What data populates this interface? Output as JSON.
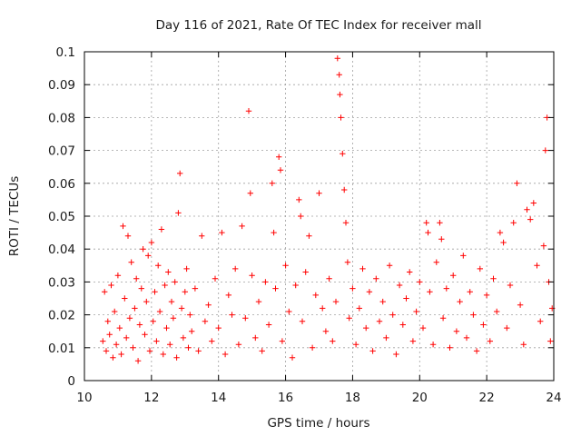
{
  "chart_data": {
    "type": "scatter",
    "title": "Day 116 of 2021, Rate Of TEC Index for receiver mall",
    "xlabel": "GPS time / hours",
    "ylabel": "ROTI / TECUs",
    "xlim": [
      10,
      24
    ],
    "ylim": [
      0,
      0.1
    ],
    "x_ticks": [
      "10",
      "12",
      "14",
      "16",
      "18",
      "20",
      "22",
      "24"
    ],
    "y_ticks": [
      "0",
      "0.01",
      "0.02",
      "0.03",
      "0.04",
      "0.05",
      "0.06",
      "0.07",
      "0.08",
      "0.09",
      "0.1"
    ],
    "grid": true,
    "marker": "plus",
    "color": "#ff0000",
    "series": [
      {
        "points": [
          [
            10.55,
            0.012
          ],
          [
            10.6,
            0.027
          ],
          [
            10.65,
            0.009
          ],
          [
            10.7,
            0.018
          ],
          [
            10.75,
            0.014
          ],
          [
            10.8,
            0.029
          ],
          [
            10.85,
            0.007
          ],
          [
            10.9,
            0.021
          ],
          [
            10.95,
            0.011
          ],
          [
            11.0,
            0.032
          ],
          [
            11.05,
            0.016
          ],
          [
            11.1,
            0.008
          ],
          [
            11.15,
            0.047
          ],
          [
            11.2,
            0.025
          ],
          [
            11.25,
            0.013
          ],
          [
            11.3,
            0.044
          ],
          [
            11.35,
            0.019
          ],
          [
            11.4,
            0.036
          ],
          [
            11.45,
            0.01
          ],
          [
            11.5,
            0.022
          ],
          [
            11.55,
            0.031
          ],
          [
            11.6,
            0.006
          ],
          [
            11.65,
            0.017
          ],
          [
            11.7,
            0.028
          ],
          [
            11.75,
            0.04
          ],
          [
            11.8,
            0.014
          ],
          [
            11.85,
            0.024
          ],
          [
            11.9,
            0.038
          ],
          [
            11.95,
            0.009
          ],
          [
            12.0,
            0.042
          ],
          [
            12.05,
            0.018
          ],
          [
            12.1,
            0.027
          ],
          [
            12.15,
            0.012
          ],
          [
            12.2,
            0.035
          ],
          [
            12.25,
            0.021
          ],
          [
            12.3,
            0.046
          ],
          [
            12.35,
            0.008
          ],
          [
            12.4,
            0.029
          ],
          [
            12.45,
            0.016
          ],
          [
            12.5,
            0.033
          ],
          [
            12.55,
            0.011
          ],
          [
            12.6,
            0.024
          ],
          [
            12.65,
            0.019
          ],
          [
            12.7,
            0.03
          ],
          [
            12.75,
            0.007
          ],
          [
            12.8,
            0.051
          ],
          [
            12.85,
            0.063
          ],
          [
            12.9,
            0.022
          ],
          [
            12.95,
            0.013
          ],
          [
            13.0,
            0.027
          ],
          [
            13.05,
            0.034
          ],
          [
            13.1,
            0.01
          ],
          [
            13.15,
            0.02
          ],
          [
            13.2,
            0.015
          ],
          [
            13.3,
            0.028
          ],
          [
            13.4,
            0.009
          ],
          [
            13.5,
            0.044
          ],
          [
            13.6,
            0.018
          ],
          [
            13.7,
            0.023
          ],
          [
            13.8,
            0.012
          ],
          [
            13.9,
            0.031
          ],
          [
            14.0,
            0.016
          ],
          [
            14.1,
            0.045
          ],
          [
            14.2,
            0.008
          ],
          [
            14.3,
            0.026
          ],
          [
            14.4,
            0.02
          ],
          [
            14.5,
            0.034
          ],
          [
            14.6,
            0.011
          ],
          [
            14.7,
            0.047
          ],
          [
            14.8,
            0.019
          ],
          [
            14.9,
            0.082
          ],
          [
            14.95,
            0.057
          ],
          [
            15.0,
            0.032
          ],
          [
            15.1,
            0.013
          ],
          [
            15.2,
            0.024
          ],
          [
            15.3,
            0.009
          ],
          [
            15.4,
            0.03
          ],
          [
            15.5,
            0.017
          ],
          [
            15.6,
            0.06
          ],
          [
            15.65,
            0.045
          ],
          [
            15.7,
            0.028
          ],
          [
            15.8,
            0.068
          ],
          [
            15.85,
            0.064
          ],
          [
            15.9,
            0.012
          ],
          [
            16.0,
            0.035
          ],
          [
            16.1,
            0.021
          ],
          [
            16.2,
            0.007
          ],
          [
            16.3,
            0.029
          ],
          [
            16.4,
            0.055
          ],
          [
            16.45,
            0.05
          ],
          [
            16.5,
            0.018
          ],
          [
            16.6,
            0.033
          ],
          [
            16.7,
            0.044
          ],
          [
            16.8,
            0.01
          ],
          [
            16.9,
            0.026
          ],
          [
            17.0,
            0.057
          ],
          [
            17.1,
            0.022
          ],
          [
            17.2,
            0.015
          ],
          [
            17.3,
            0.031
          ],
          [
            17.4,
            0.012
          ],
          [
            17.5,
            0.024
          ],
          [
            17.55,
            0.098
          ],
          [
            17.6,
            0.093
          ],
          [
            17.62,
            0.087
          ],
          [
            17.65,
            0.08
          ],
          [
            17.7,
            0.069
          ],
          [
            17.75,
            0.058
          ],
          [
            17.8,
            0.048
          ],
          [
            17.85,
            0.036
          ],
          [
            17.9,
            0.019
          ],
          [
            18.0,
            0.028
          ],
          [
            18.1,
            0.011
          ],
          [
            18.2,
            0.022
          ],
          [
            18.3,
            0.034
          ],
          [
            18.4,
            0.016
          ],
          [
            18.5,
            0.027
          ],
          [
            18.6,
            0.009
          ],
          [
            18.7,
            0.031
          ],
          [
            18.8,
            0.018
          ],
          [
            18.9,
            0.024
          ],
          [
            19.0,
            0.013
          ],
          [
            19.1,
            0.035
          ],
          [
            19.2,
            0.02
          ],
          [
            19.3,
            0.008
          ],
          [
            19.4,
            0.029
          ],
          [
            19.5,
            0.017
          ],
          [
            19.6,
            0.025
          ],
          [
            19.7,
            0.033
          ],
          [
            19.8,
            0.012
          ],
          [
            19.9,
            0.021
          ],
          [
            20.0,
            0.03
          ],
          [
            20.1,
            0.016
          ],
          [
            20.2,
            0.048
          ],
          [
            20.25,
            0.045
          ],
          [
            20.3,
            0.027
          ],
          [
            20.4,
            0.011
          ],
          [
            20.5,
            0.036
          ],
          [
            20.6,
            0.048
          ],
          [
            20.65,
            0.043
          ],
          [
            20.7,
            0.019
          ],
          [
            20.8,
            0.028
          ],
          [
            20.9,
            0.01
          ],
          [
            21.0,
            0.032
          ],
          [
            21.1,
            0.015
          ],
          [
            21.2,
            0.024
          ],
          [
            21.3,
            0.038
          ],
          [
            21.4,
            0.013
          ],
          [
            21.5,
            0.027
          ],
          [
            21.6,
            0.02
          ],
          [
            21.7,
            0.009
          ],
          [
            21.8,
            0.034
          ],
          [
            21.9,
            0.017
          ],
          [
            22.0,
            0.026
          ],
          [
            22.1,
            0.012
          ],
          [
            22.2,
            0.031
          ],
          [
            22.3,
            0.021
          ],
          [
            22.4,
            0.045
          ],
          [
            22.5,
            0.042
          ],
          [
            22.6,
            0.016
          ],
          [
            22.7,
            0.029
          ],
          [
            22.8,
            0.048
          ],
          [
            22.9,
            0.06
          ],
          [
            23.0,
            0.023
          ],
          [
            23.1,
            0.011
          ],
          [
            23.2,
            0.052
          ],
          [
            23.3,
            0.049
          ],
          [
            23.4,
            0.054
          ],
          [
            23.5,
            0.035
          ],
          [
            23.6,
            0.018
          ],
          [
            23.7,
            0.041
          ],
          [
            23.75,
            0.07
          ],
          [
            23.8,
            0.08
          ],
          [
            23.85,
            0.03
          ],
          [
            23.9,
            0.012
          ],
          [
            23.95,
            0.022
          ]
        ]
      }
    ]
  }
}
